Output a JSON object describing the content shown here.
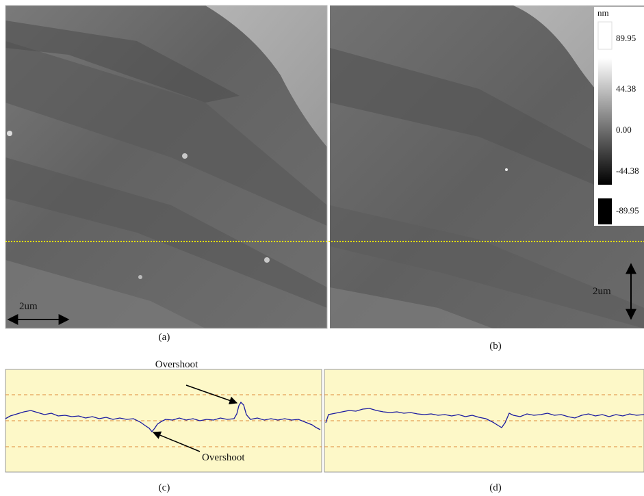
{
  "colorbar": {
    "unit": "nm",
    "labels": [
      "89.95",
      "44.38",
      "0.00",
      "-44.38",
      "-89.95"
    ]
  },
  "panels": {
    "a": {
      "caption": "(a)",
      "scale": "2um"
    },
    "b": {
      "caption": "(b)",
      "scale": "2um"
    },
    "c": {
      "caption": "(c)",
      "annotations": [
        "Overshoot",
        "Overshoot"
      ]
    },
    "d": {
      "caption": "(d)"
    }
  }
}
